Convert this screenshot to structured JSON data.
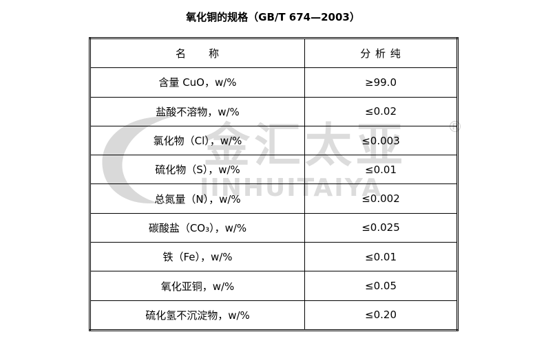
{
  "header": {
    "title": "氧化铜的规格（GB/T 674—2003）"
  },
  "watermark": {
    "chinese": "金汇太亚",
    "latin": "JINHUITAIYA",
    "mark": "®"
  },
  "table": {
    "columns": [
      "名　　称",
      "分 析 纯"
    ],
    "rows": [
      [
        "含量 CuO，w/%",
        "≥99.0"
      ],
      [
        "盐酸不溶物，w/%",
        "≤0.02"
      ],
      [
        "氯化物（Cl），w/%",
        "≤0.003"
      ],
      [
        "硫化物（S），w/%",
        "≤0.01"
      ],
      [
        "总氮量（N），w/%",
        "≤0.002"
      ],
      [
        "碳酸盐（CO₃），w/%",
        "≤0.025"
      ],
      [
        "铁（Fe），w/%",
        "≤0.01"
      ],
      [
        "氧化亚铜，w/%",
        "≤0.05"
      ],
      [
        "硫化氢不沉淀物，w/%",
        "≤0.20"
      ]
    ]
  }
}
